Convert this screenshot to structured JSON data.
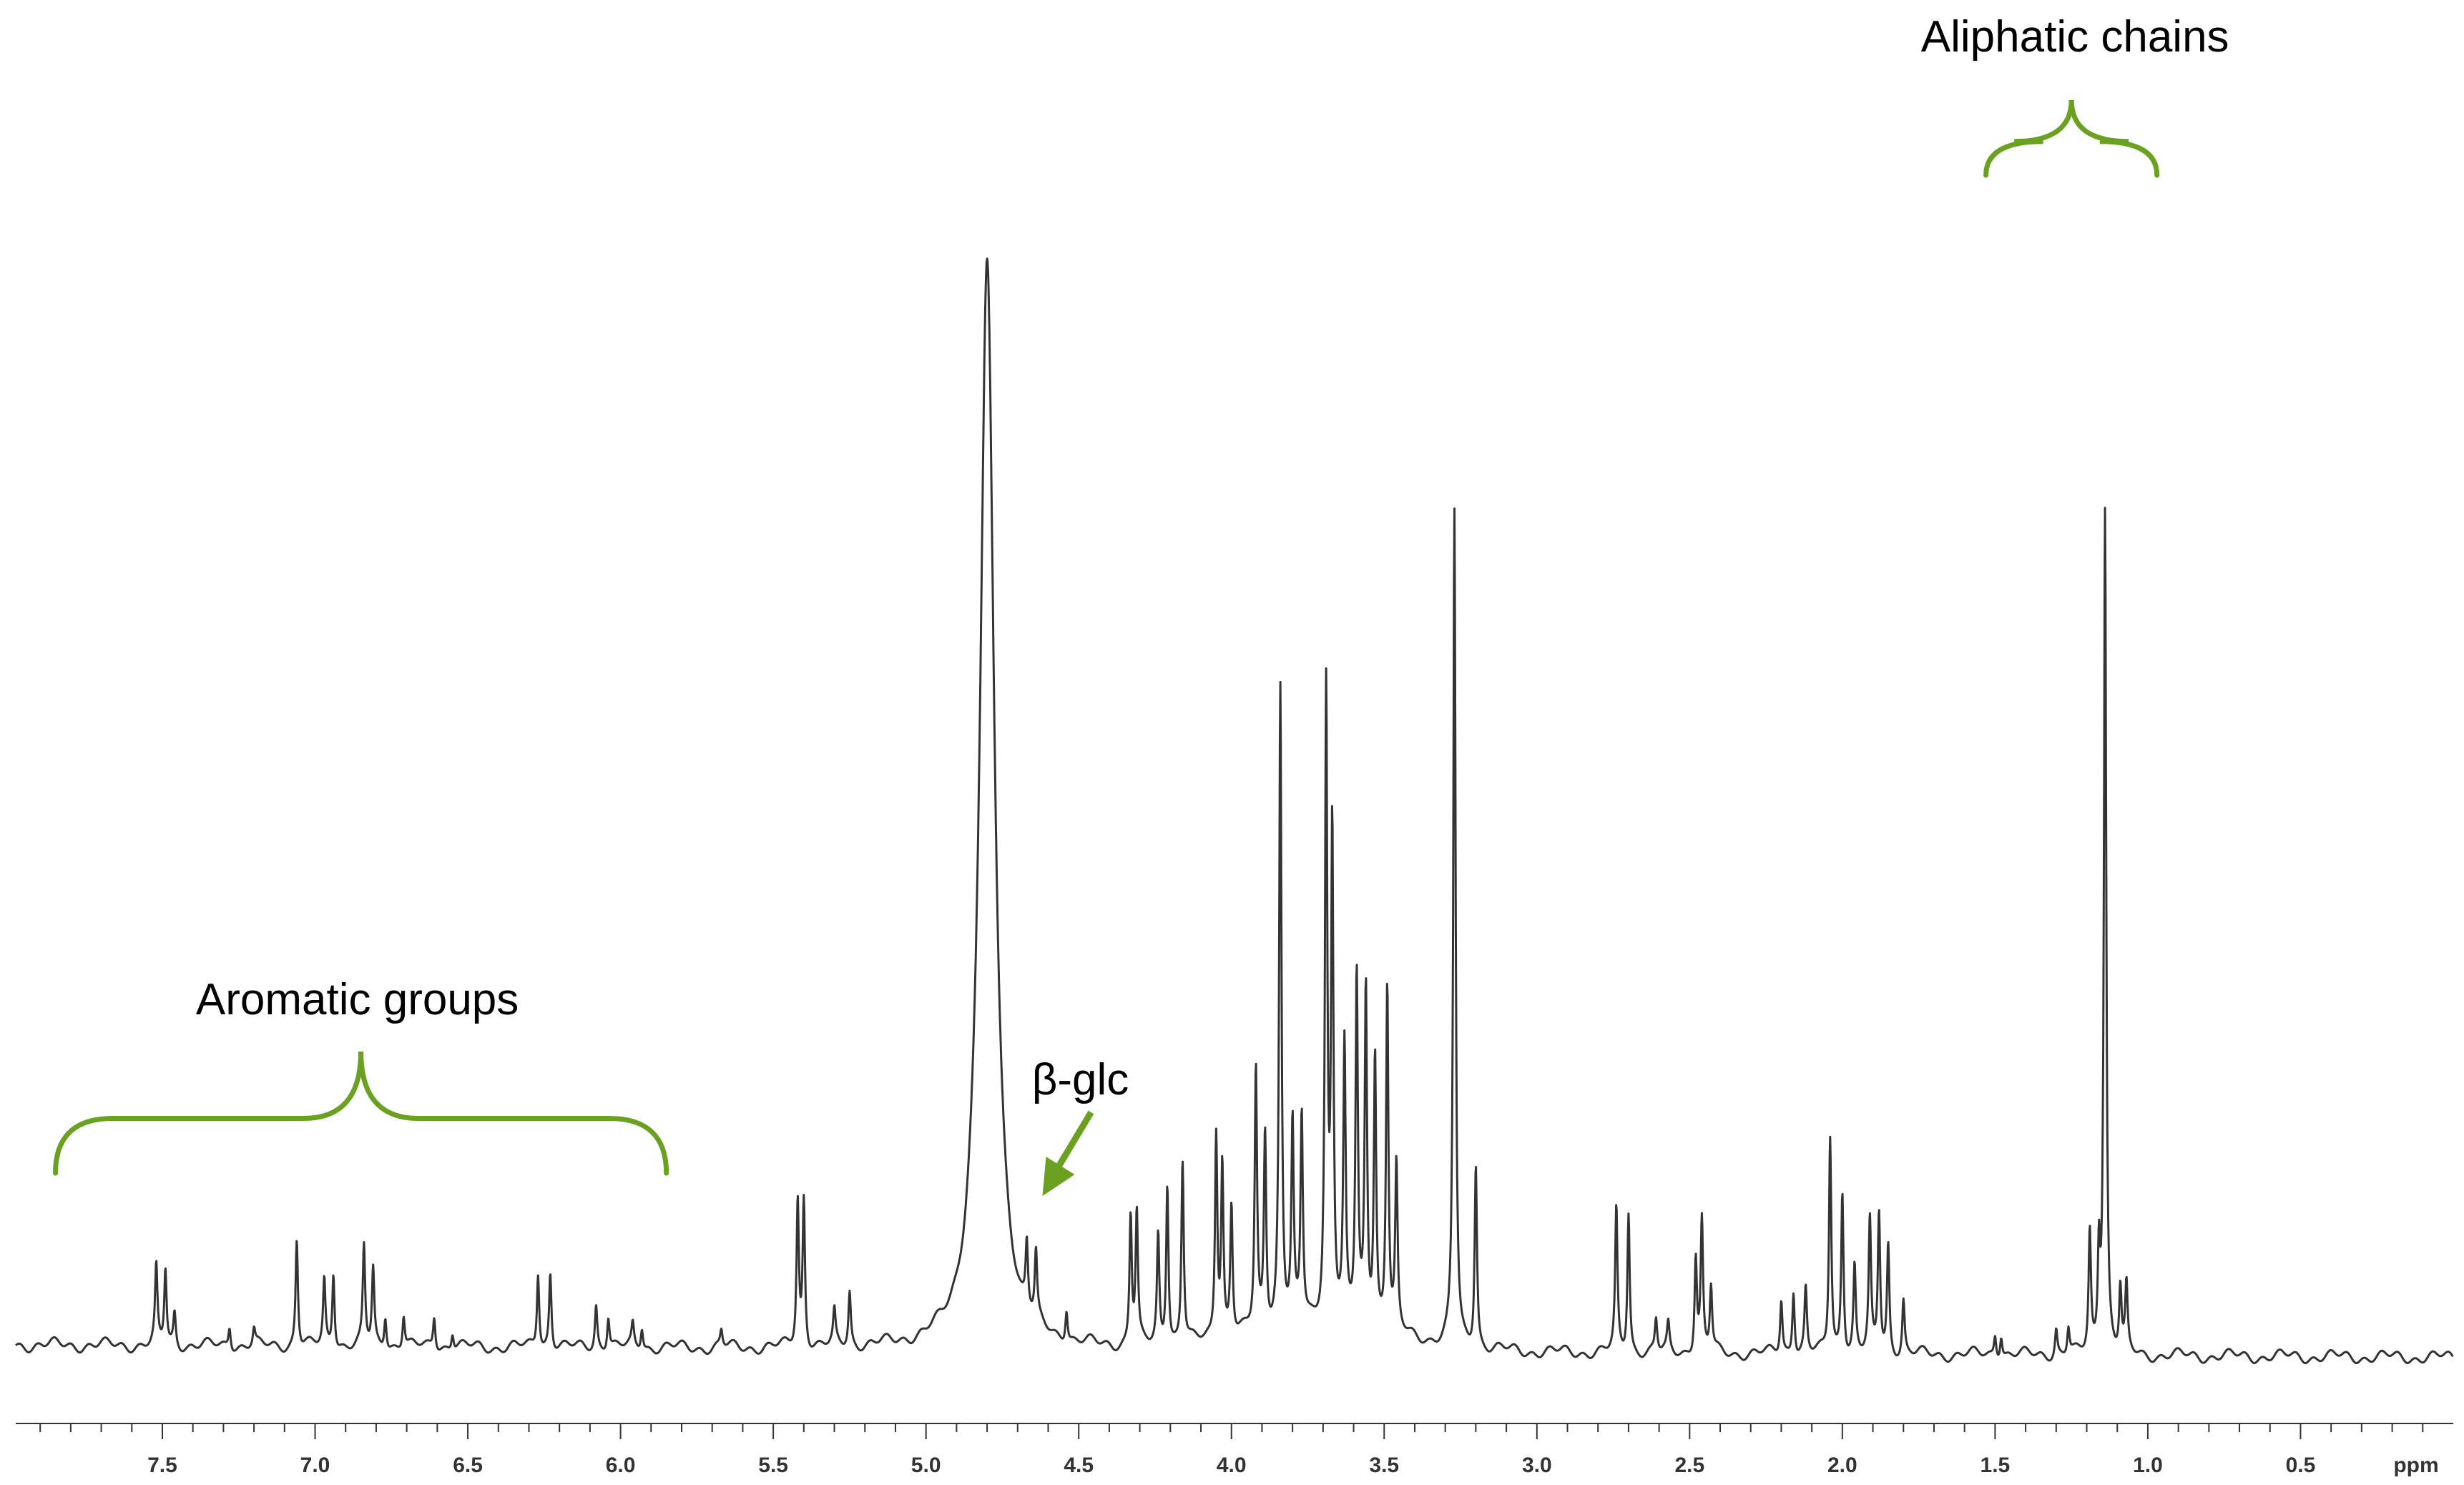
{
  "chart_data": {
    "type": "line",
    "x_unit_label": "ppm",
    "xlim": [
      7.98,
      0.0
    ],
    "x_reversed": true,
    "ylim": [
      0,
      1.0
    ],
    "grid": false,
    "legend": "none",
    "x_ticks": [
      "7.5",
      "7.0",
      "6.5",
      "6.0",
      "5.5",
      "5.0",
      "4.5",
      "4.0",
      "3.5",
      "3.0",
      "2.5",
      "2.0",
      "1.5",
      "1.0",
      "0.5"
    ],
    "peaks": [
      {
        "ppm": 7.52,
        "height": 0.07
      },
      {
        "ppm": 7.49,
        "height": 0.07
      },
      {
        "ppm": 7.46,
        "height": 0.03
      },
      {
        "ppm": 7.28,
        "height": 0.02
      },
      {
        "ppm": 7.2,
        "height": 0.015
      },
      {
        "ppm": 7.06,
        "height": 0.1
      },
      {
        "ppm": 6.97,
        "height": 0.06
      },
      {
        "ppm": 6.94,
        "height": 0.07
      },
      {
        "ppm": 6.84,
        "height": 0.09
      },
      {
        "ppm": 6.81,
        "height": 0.07
      },
      {
        "ppm": 6.77,
        "height": 0.03
      },
      {
        "ppm": 6.71,
        "height": 0.03
      },
      {
        "ppm": 6.61,
        "height": 0.03
      },
      {
        "ppm": 6.55,
        "height": 0.015
      },
      {
        "ppm": 6.27,
        "height": 0.07
      },
      {
        "ppm": 6.23,
        "height": 0.07
      },
      {
        "ppm": 6.08,
        "height": 0.04
      },
      {
        "ppm": 6.04,
        "height": 0.03
      },
      {
        "ppm": 5.96,
        "height": 0.02
      },
      {
        "ppm": 5.93,
        "height": 0.02
      },
      {
        "ppm": 5.67,
        "height": 0.015
      },
      {
        "ppm": 5.42,
        "height": 0.135
      },
      {
        "ppm": 5.4,
        "height": 0.135
      },
      {
        "ppm": 5.3,
        "height": 0.03
      },
      {
        "ppm": 5.25,
        "height": 0.05
      },
      {
        "ppm": 4.8,
        "height": 1.0
      },
      {
        "ppm": 4.67,
        "height": 0.06
      },
      {
        "ppm": 4.64,
        "height": 0.06
      },
      {
        "ppm": 4.54,
        "height": 0.03
      },
      {
        "ppm": 4.33,
        "height": 0.12
      },
      {
        "ppm": 4.31,
        "height": 0.12
      },
      {
        "ppm": 4.24,
        "height": 0.1
      },
      {
        "ppm": 4.21,
        "height": 0.15
      },
      {
        "ppm": 4.16,
        "height": 0.17
      },
      {
        "ppm": 4.05,
        "height": 0.19
      },
      {
        "ppm": 4.03,
        "height": 0.16
      },
      {
        "ppm": 4.0,
        "height": 0.12
      },
      {
        "ppm": 3.92,
        "height": 0.24
      },
      {
        "ppm": 3.89,
        "height": 0.18
      },
      {
        "ppm": 3.84,
        "height": 0.59
      },
      {
        "ppm": 3.8,
        "height": 0.18
      },
      {
        "ppm": 3.77,
        "height": 0.19
      },
      {
        "ppm": 3.69,
        "height": 0.58
      },
      {
        "ppm": 3.67,
        "height": 0.45
      },
      {
        "ppm": 3.63,
        "height": 0.25
      },
      {
        "ppm": 3.59,
        "height": 0.32
      },
      {
        "ppm": 3.56,
        "height": 0.31
      },
      {
        "ppm": 3.53,
        "height": 0.25
      },
      {
        "ppm": 3.49,
        "height": 0.32
      },
      {
        "ppm": 3.46,
        "height": 0.15
      },
      {
        "ppm": 3.27,
        "height": 0.77
      },
      {
        "ppm": 3.2,
        "height": 0.17
      },
      {
        "ppm": 2.74,
        "height": 0.13
      },
      {
        "ppm": 2.7,
        "height": 0.13
      },
      {
        "ppm": 2.61,
        "height": 0.03
      },
      {
        "ppm": 2.57,
        "height": 0.025
      },
      {
        "ppm": 2.48,
        "height": 0.09
      },
      {
        "ppm": 2.46,
        "height": 0.12
      },
      {
        "ppm": 2.43,
        "height": 0.06
      },
      {
        "ppm": 2.2,
        "height": 0.05
      },
      {
        "ppm": 2.16,
        "height": 0.06
      },
      {
        "ppm": 2.12,
        "height": 0.06
      },
      {
        "ppm": 2.04,
        "height": 0.2
      },
      {
        "ppm": 2.0,
        "height": 0.15
      },
      {
        "ppm": 1.96,
        "height": 0.08
      },
      {
        "ppm": 1.91,
        "height": 0.12
      },
      {
        "ppm": 1.88,
        "height": 0.13
      },
      {
        "ppm": 1.85,
        "height": 0.1
      },
      {
        "ppm": 1.8,
        "height": 0.05
      },
      {
        "ppm": 1.5,
        "height": 0.02
      },
      {
        "ppm": 1.48,
        "height": 0.02
      },
      {
        "ppm": 1.3,
        "height": 0.025
      },
      {
        "ppm": 1.26,
        "height": 0.025
      },
      {
        "ppm": 1.19,
        "height": 0.11
      },
      {
        "ppm": 1.16,
        "height": 0.09
      },
      {
        "ppm": 1.14,
        "height": 0.78
      },
      {
        "ppm": 1.09,
        "height": 0.06
      },
      {
        "ppm": 1.07,
        "height": 0.06
      }
    ],
    "annotations": [
      {
        "text": "Aromatic groups",
        "type": "brace",
        "ppm_from": 7.85,
        "ppm_to": 5.85
      },
      {
        "text": "Aliphatic chains",
        "type": "brace",
        "ppm_from": 1.53,
        "ppm_to": 0.97
      },
      {
        "text": "β-glc",
        "type": "arrow",
        "ppm": 4.6
      }
    ],
    "accent_color": "#6aa121",
    "line_color": "#333333"
  }
}
